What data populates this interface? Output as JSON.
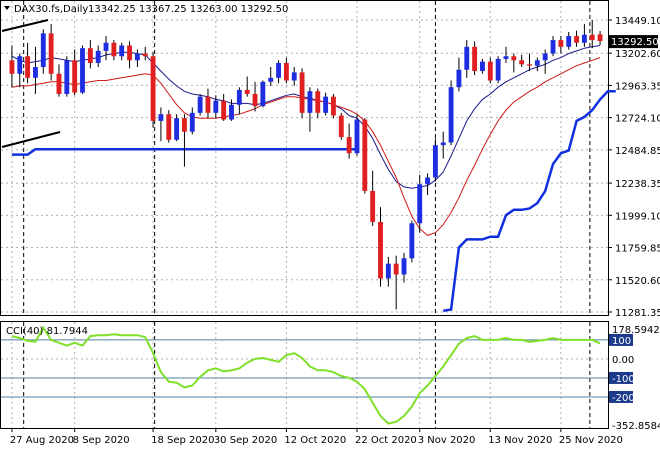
{
  "header": {
    "symbol": "DAX30.fs,Daily",
    "ohlc": "13342.25 13367.25 13263.00 13292.50"
  },
  "price_badge": "13292.50",
  "colors": {
    "bull": "#1f2de0",
    "bear": "#e02020",
    "ma_fast": "#1a1a8c",
    "ma_slow": "#d01818",
    "trail": "#1030e0",
    "cci": "#7fe02a",
    "level_line": "#5080a0",
    "badge_bg": "#000000",
    "level_badge": "#1c3a8c"
  },
  "indicator": {
    "label": "CCI(40) 81.7944",
    "levels": [
      100,
      -100,
      -200
    ],
    "level_badges": [
      "100",
      "-100",
      "-200"
    ]
  },
  "chart_data": [
    {
      "type": "candlestick",
      "title": "DAX30.fs,Daily",
      "ylim": [
        11281.35,
        13449.1
      ],
      "y_ticks": [
        "13449.10",
        "13202.60",
        "12963.35",
        "12724.10",
        "12484.85",
        "12238.35",
        "11999.10",
        "11759.85",
        "11520.60",
        "11281.35"
      ],
      "x_labels": [
        "27 Aug 2020",
        "8 Sep 2020",
        "18 Sep 2020",
        "30 Sep 2020",
        "12 Oct 2020",
        "22 Oct 2020",
        "3 Nov 2020",
        "13 Nov 2020",
        "25 Nov 2020"
      ],
      "current_price": 13292.5,
      "candles": [
        {
          "o": 13150,
          "h": 13260,
          "l": 12950,
          "c": 13050
        },
        {
          "o": 13050,
          "h": 13200,
          "l": 12950,
          "c": 13180
        },
        {
          "o": 13180,
          "h": 13280,
          "l": 12980,
          "c": 13020
        },
        {
          "o": 13020,
          "h": 13250,
          "l": 12900,
          "c": 13100
        },
        {
          "o": 13100,
          "h": 13380,
          "l": 13050,
          "c": 13350
        },
        {
          "o": 13350,
          "h": 13420,
          "l": 13000,
          "c": 13050
        },
        {
          "o": 13050,
          "h": 13120,
          "l": 12880,
          "c": 12900
        },
        {
          "o": 12900,
          "h": 13180,
          "l": 12880,
          "c": 13150
        },
        {
          "o": 13150,
          "h": 13230,
          "l": 12890,
          "c": 12910
        },
        {
          "o": 12910,
          "h": 13260,
          "l": 12900,
          "c": 13240
        },
        {
          "o": 13240,
          "h": 13300,
          "l": 13090,
          "c": 13130
        },
        {
          "o": 13130,
          "h": 13260,
          "l": 13100,
          "c": 13220
        },
        {
          "o": 13220,
          "h": 13330,
          "l": 13150,
          "c": 13280
        },
        {
          "o": 13280,
          "h": 13300,
          "l": 13150,
          "c": 13180
        },
        {
          "o": 13180,
          "h": 13280,
          "l": 13150,
          "c": 13260
        },
        {
          "o": 13260,
          "h": 13290,
          "l": 13090,
          "c": 13150
        },
        {
          "o": 13150,
          "h": 13230,
          "l": 13100,
          "c": 13200
        },
        {
          "o": 13200,
          "h": 13250,
          "l": 13150,
          "c": 13180
        },
        {
          "o": 13180,
          "h": 13210,
          "l": 12650,
          "c": 12700
        },
        {
          "o": 12700,
          "h": 12800,
          "l": 12550,
          "c": 12750
        },
        {
          "o": 12750,
          "h": 12780,
          "l": 12540,
          "c": 12560
        },
        {
          "o": 12560,
          "h": 12750,
          "l": 12550,
          "c": 12720
        },
        {
          "o": 12720,
          "h": 12750,
          "l": 12360,
          "c": 12620
        },
        {
          "o": 12620,
          "h": 12800,
          "l": 12600,
          "c": 12760
        },
        {
          "o": 12760,
          "h": 12900,
          "l": 12740,
          "c": 12880
        },
        {
          "o": 12880,
          "h": 12940,
          "l": 12720,
          "c": 12760
        },
        {
          "o": 12760,
          "h": 12890,
          "l": 12720,
          "c": 12850
        },
        {
          "o": 12850,
          "h": 12900,
          "l": 12700,
          "c": 12710
        },
        {
          "o": 12710,
          "h": 12860,
          "l": 12700,
          "c": 12820
        },
        {
          "o": 12820,
          "h": 12950,
          "l": 12750,
          "c": 12930
        },
        {
          "o": 12930,
          "h": 13030,
          "l": 12880,
          "c": 12900
        },
        {
          "o": 12900,
          "h": 12990,
          "l": 12770,
          "c": 12810
        },
        {
          "o": 12810,
          "h": 13000,
          "l": 12800,
          "c": 12990
        },
        {
          "o": 12990,
          "h": 13100,
          "l": 12960,
          "c": 13020
        },
        {
          "o": 13020,
          "h": 13150,
          "l": 12980,
          "c": 13130
        },
        {
          "o": 13130,
          "h": 13170,
          "l": 12980,
          "c": 13000
        },
        {
          "o": 13000,
          "h": 13100,
          "l": 12960,
          "c": 13060
        },
        {
          "o": 13060,
          "h": 13090,
          "l": 12720,
          "c": 12760
        },
        {
          "o": 12760,
          "h": 12950,
          "l": 12620,
          "c": 12920
        },
        {
          "o": 12920,
          "h": 12940,
          "l": 12720,
          "c": 12760
        },
        {
          "o": 12760,
          "h": 12910,
          "l": 12740,
          "c": 12880
        },
        {
          "o": 12880,
          "h": 12900,
          "l": 12720,
          "c": 12740
        },
        {
          "o": 12740,
          "h": 12760,
          "l": 12560,
          "c": 12580
        },
        {
          "o": 12580,
          "h": 12680,
          "l": 12420,
          "c": 12460
        },
        {
          "o": 12460,
          "h": 12750,
          "l": 12440,
          "c": 12710
        },
        {
          "o": 12710,
          "h": 12720,
          "l": 12160,
          "c": 12180
        },
        {
          "o": 12180,
          "h": 12330,
          "l": 11920,
          "c": 11950
        },
        {
          "o": 11950,
          "h": 12060,
          "l": 11470,
          "c": 11530
        },
        {
          "o": 11530,
          "h": 11690,
          "l": 11470,
          "c": 11640
        },
        {
          "o": 11640,
          "h": 11700,
          "l": 11300,
          "c": 11560
        },
        {
          "o": 11560,
          "h": 11720,
          "l": 11500,
          "c": 11680
        },
        {
          "o": 11680,
          "h": 11960,
          "l": 11650,
          "c": 11940
        },
        {
          "o": 11940,
          "h": 12300,
          "l": 11870,
          "c": 12230
        },
        {
          "o": 12230,
          "h": 12310,
          "l": 12150,
          "c": 12280
        },
        {
          "o": 12280,
          "h": 12570,
          "l": 12250,
          "c": 12520
        },
        {
          "o": 12520,
          "h": 12620,
          "l": 12420,
          "c": 12540
        },
        {
          "o": 12540,
          "h": 13000,
          "l": 12520,
          "c": 12950
        },
        {
          "o": 12950,
          "h": 13170,
          "l": 12920,
          "c": 13080
        },
        {
          "o": 13080,
          "h": 13300,
          "l": 13020,
          "c": 13250
        },
        {
          "o": 13250,
          "h": 13290,
          "l": 13040,
          "c": 13070
        },
        {
          "o": 13070,
          "h": 13160,
          "l": 13050,
          "c": 13140
        },
        {
          "o": 13140,
          "h": 13170,
          "l": 12980,
          "c": 13000
        },
        {
          "o": 13000,
          "h": 13180,
          "l": 12980,
          "c": 13160
        },
        {
          "o": 13160,
          "h": 13250,
          "l": 13130,
          "c": 13180
        },
        {
          "o": 13180,
          "h": 13200,
          "l": 13060,
          "c": 13150
        },
        {
          "o": 13150,
          "h": 13190,
          "l": 13100,
          "c": 13120
        },
        {
          "o": 13120,
          "h": 13200,
          "l": 13070,
          "c": 13110
        },
        {
          "o": 13110,
          "h": 13170,
          "l": 13070,
          "c": 13150
        },
        {
          "o": 13150,
          "h": 13230,
          "l": 13050,
          "c": 13200
        },
        {
          "o": 13200,
          "h": 13330,
          "l": 13180,
          "c": 13300
        },
        {
          "o": 13300,
          "h": 13330,
          "l": 13200,
          "c": 13250
        },
        {
          "o": 13250,
          "h": 13360,
          "l": 13230,
          "c": 13330
        },
        {
          "o": 13330,
          "h": 13370,
          "l": 13250,
          "c": 13280
        },
        {
          "o": 13280,
          "h": 13420,
          "l": 13250,
          "c": 13340
        },
        {
          "o": 13340,
          "h": 13449,
          "l": 13240,
          "c": 13300
        },
        {
          "o": 13342.25,
          "h": 13367.25,
          "l": 13263,
          "c": 13292.5
        }
      ],
      "series": [
        {
          "values": [
            13180,
            13150,
            13130,
            13140,
            13150,
            13170,
            13160,
            13150,
            13140,
            13150,
            13160,
            13170,
            13190,
            13200,
            13210,
            13210,
            13200,
            13190,
            13130,
            13070,
            13010,
            12960,
            12920,
            12900,
            12890,
            12880,
            12860,
            12850,
            12830,
            12830,
            12830,
            12820,
            12830,
            12850,
            12870,
            12890,
            12900,
            12880,
            12870,
            12850,
            12840,
            12820,
            12790,
            12740,
            12720,
            12660,
            12570,
            12450,
            12340,
            12250,
            12210,
            12200,
            12210,
            12220,
            12260,
            12320,
            12440,
            12570,
            12700,
            12790,
            12860,
            12900,
            12950,
            12990,
            13020,
            13050,
            13080,
            13100,
            13120,
            13150,
            13170,
            13200,
            13220,
            13240,
            13250,
            13260
          ]
        },
        {
          "values": [
            12950,
            12960,
            12960,
            12970,
            12980,
            12990,
            12990,
            12980,
            12970,
            12980,
            12990,
            13000,
            13000,
            13010,
            13020,
            13030,
            13040,
            13050,
            13040,
            12980,
            12900,
            12820,
            12760,
            12730,
            12720,
            12720,
            12720,
            12730,
            12740,
            12750,
            12770,
            12790,
            12820,
            12840,
            12860,
            12880,
            12880,
            12870,
            12860,
            12850,
            12840,
            12820,
            12800,
            12780,
            12750,
            12700,
            12620,
            12520,
            12400,
            12280,
            12130,
            11990,
            11900,
            11850,
            11870,
            11930,
            12020,
            12130,
            12260,
            12370,
            12490,
            12600,
            12700,
            12780,
            12840,
            12880,
            12920,
            12950,
            12990,
            13020,
            13050,
            13080,
            13110,
            13130,
            13150,
            13170
          ]
        },
        {
          "values": [
            12450,
            12450,
            12450,
            12490,
            12490,
            12490,
            12490,
            12490,
            12490,
            12490,
            12490,
            12490,
            12490,
            12490,
            12490,
            12490,
            12490,
            12490,
            12490,
            12490,
            12490,
            12490,
            12490,
            12490,
            12490,
            12490,
            12490,
            12490,
            12490,
            12490,
            12490,
            12490,
            12490,
            12490,
            12490,
            12490,
            12490,
            12490,
            12490,
            12490,
            12490,
            12490,
            12490,
            12490,
            12490,
            null,
            null,
            null,
            null,
            null,
            null,
            null,
            null,
            null,
            null,
            11290,
            11300,
            11760,
            11820,
            11820,
            11820,
            11840,
            11840,
            12000,
            12040,
            12040,
            12050,
            12090,
            12180,
            12380,
            12460,
            12480,
            12700,
            12730,
            12780,
            12860,
            12920,
            12920
          ]
        }
      ]
    },
    {
      "type": "line",
      "title": "CCI(40) 81.7944",
      "ylim": [
        -352.8584,
        178.5942
      ],
      "y_ticks": [
        "178.5942",
        "100",
        "0.00",
        "-100",
        "-200",
        "-352.8584"
      ],
      "series": [
        {
          "values": [
            120,
            110,
            95,
            90,
            165,
            100,
            85,
            70,
            85,
            70,
            120,
            125,
            125,
            130,
            125,
            125,
            125,
            115,
            30,
            -70,
            -120,
            -125,
            -150,
            -140,
            -95,
            -60,
            -50,
            -65,
            -60,
            -50,
            -20,
            0,
            5,
            -5,
            -15,
            20,
            30,
            5,
            -40,
            -60,
            -60,
            -70,
            -90,
            -100,
            -120,
            -160,
            -230,
            -300,
            -340,
            -330,
            -300,
            -250,
            -180,
            -140,
            -90,
            -40,
            20,
            80,
            110,
            120,
            100,
            100,
            100,
            110,
            100,
            100,
            90,
            95,
            100,
            110,
            100,
            100,
            100,
            100,
            100,
            82
          ]
        }
      ]
    }
  ]
}
